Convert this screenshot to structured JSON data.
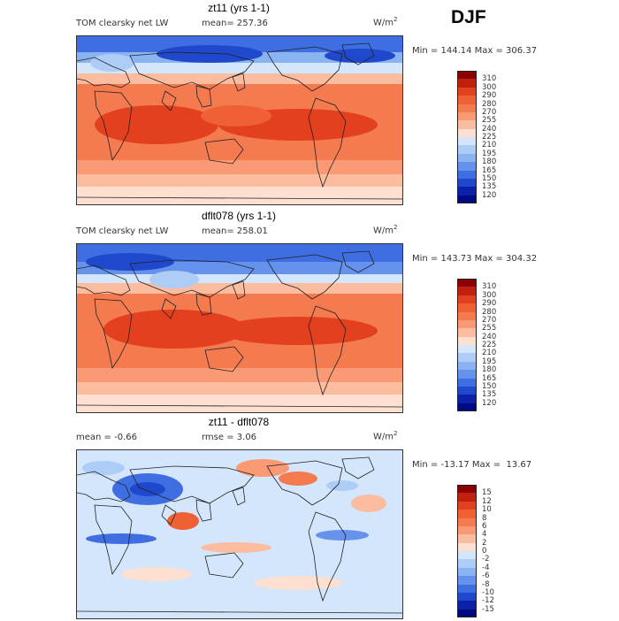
{
  "season": "DJF",
  "panels": [
    {
      "title": "zt11 (yrs 1-1)",
      "variable": "TOM clearsky net LW",
      "mean": "mean= 257.36",
      "units": "W/m",
      "units_sup": "2",
      "minmax": "Min = 144.14 Max = 306.37",
      "colorbar_labels": [
        "310",
        "300",
        "290",
        "280",
        "270",
        "255",
        "240",
        "225",
        "210",
        "195",
        "180",
        "165",
        "150",
        "135",
        "120"
      ],
      "colorbar_colors": [
        "#8b0000",
        "#c1200f",
        "#e2401f",
        "#ef6035",
        "#f47a4f",
        "#f99a75",
        "#fbbca0",
        "#fde0d0",
        "#d4e6fb",
        "#aecdf6",
        "#8ab3f2",
        "#6592ec",
        "#3f6ee2",
        "#2048cc",
        "#0b22a8",
        "#000a80"
      ]
    },
    {
      "title": "dflt078 (yrs 1-1)",
      "variable": "TOM clearsky net LW",
      "mean": "mean= 258.01",
      "units": "W/m",
      "units_sup": "2",
      "minmax": "Min = 143.73 Max = 304.32",
      "colorbar_labels": [
        "310",
        "300",
        "290",
        "280",
        "270",
        "255",
        "240",
        "225",
        "210",
        "195",
        "180",
        "165",
        "150",
        "135",
        "120"
      ],
      "colorbar_colors": [
        "#8b0000",
        "#c1200f",
        "#e2401f",
        "#ef6035",
        "#f47a4f",
        "#f99a75",
        "#fbbca0",
        "#fde0d0",
        "#d4e6fb",
        "#aecdf6",
        "#8ab3f2",
        "#6592ec",
        "#3f6ee2",
        "#2048cc",
        "#0b22a8",
        "#000a80"
      ]
    },
    {
      "title": "zt11 - dflt078",
      "mean": "mean =  -0.66",
      "rmse": "rmse =   3.06",
      "units": "W/m",
      "units_sup": "2",
      "minmax": "Min = -13.17 Max =  13.67",
      "colorbar_labels": [
        "15",
        "12",
        "10",
        "8",
        "6",
        "4",
        "2",
        "0",
        "-2",
        "-4",
        "-6",
        "-8",
        "-10",
        "-12",
        "-15"
      ],
      "colorbar_colors": [
        "#8b0000",
        "#c1200f",
        "#e2401f",
        "#ef6035",
        "#f47a4f",
        "#f99a75",
        "#fbbca0",
        "#fde0d0",
        "#d4e6fb",
        "#aecdf6",
        "#8ab3f2",
        "#6592ec",
        "#3f6ee2",
        "#2048cc",
        "#0b22a8",
        "#000a80"
      ]
    }
  ]
}
